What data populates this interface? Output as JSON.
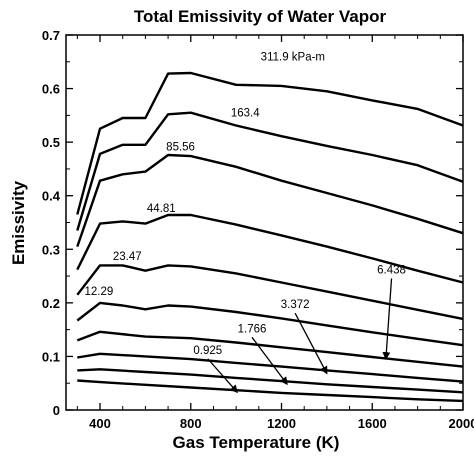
{
  "chart_data": {
    "type": "line",
    "title": "Total Emissivity of Water Vapor",
    "xlabel": "Gas Temperature (K)",
    "ylabel": "Emissivity",
    "xlim": [
      250,
      2000
    ],
    "ylim": [
      0,
      0.7
    ],
    "xticks": [
      400,
      800,
      1200,
      1600,
      2000
    ],
    "yticks": [
      0,
      0.1,
      0.2,
      0.3,
      0.4,
      0.5,
      0.6,
      0.7
    ],
    "xtick_labels": [
      "400",
      "800",
      "1200",
      "1600",
      "2000"
    ],
    "ytick_labels": [
      "0",
      "0.1",
      "0.2",
      "0.3",
      "0.4",
      "0.5",
      "0.6",
      "0.7"
    ],
    "grid": false,
    "series": [
      {
        "name": "311.9 kPa-m",
        "x": [
          300,
          400,
          500,
          600,
          700,
          800,
          1000,
          1200,
          1400,
          1600,
          1800,
          2000
        ],
        "y": [
          0.365,
          0.525,
          0.545,
          0.545,
          0.628,
          0.629,
          0.607,
          0.605,
          0.595,
          0.578,
          0.562,
          0.531
        ]
      },
      {
        "name": "163.4",
        "x": [
          300,
          400,
          500,
          600,
          700,
          800,
          1000,
          1200,
          1400,
          1600,
          1800,
          2000
        ],
        "y": [
          0.335,
          0.478,
          0.495,
          0.495,
          0.552,
          0.555,
          0.531,
          0.511,
          0.493,
          0.476,
          0.457,
          0.426
        ]
      },
      {
        "name": "85.56",
        "x": [
          300,
          400,
          500,
          600,
          700,
          800,
          1000,
          1200,
          1400,
          1600,
          1800,
          2000
        ],
        "y": [
          0.305,
          0.428,
          0.44,
          0.445,
          0.476,
          0.474,
          0.454,
          0.428,
          0.405,
          0.382,
          0.357,
          0.33
        ]
      },
      {
        "name": "44.81",
        "x": [
          300,
          400,
          500,
          600,
          700,
          800,
          1000,
          1200,
          1400,
          1600,
          1800,
          2000
        ],
        "y": [
          0.262,
          0.348,
          0.352,
          0.348,
          0.364,
          0.364,
          0.346,
          0.326,
          0.305,
          0.283,
          0.26,
          0.238
        ]
      },
      {
        "name": "23.47",
        "x": [
          300,
          400,
          500,
          600,
          700,
          800,
          1000,
          1200,
          1400,
          1600,
          1800,
          2000
        ],
        "y": [
          0.215,
          0.27,
          0.27,
          0.26,
          0.27,
          0.268,
          0.255,
          0.238,
          0.221,
          0.204,
          0.187,
          0.17
        ]
      },
      {
        "name": "12.29",
        "x": [
          300,
          400,
          500,
          600,
          700,
          800,
          1000,
          1200,
          1400,
          1600,
          1800,
          2000
        ],
        "y": [
          0.167,
          0.2,
          0.195,
          0.188,
          0.195,
          0.193,
          0.183,
          0.171,
          0.158,
          0.145,
          0.133,
          0.121
        ]
      },
      {
        "name": "6.438",
        "x": [
          300,
          400,
          600,
          800,
          1000,
          1200,
          1400,
          1600,
          1800,
          2000
        ],
        "y": [
          0.13,
          0.146,
          0.137,
          0.134,
          0.126,
          0.117,
          0.108,
          0.099,
          0.09,
          0.081
        ]
      },
      {
        "name": "3.372",
        "x": [
          300,
          400,
          600,
          800,
          1000,
          1200,
          1400,
          1600,
          1800,
          2000
        ],
        "y": [
          0.098,
          0.105,
          0.1,
          0.095,
          0.088,
          0.081,
          0.074,
          0.067,
          0.06,
          0.053
        ]
      },
      {
        "name": "1.766",
        "x": [
          300,
          400,
          600,
          800,
          1000,
          1200,
          1400,
          1600,
          1800,
          2000
        ],
        "y": [
          0.074,
          0.076,
          0.071,
          0.066,
          0.06,
          0.054,
          0.048,
          0.043,
          0.038,
          0.033
        ]
      },
      {
        "name": "0.925",
        "x": [
          300,
          400,
          600,
          800,
          1000,
          1200,
          1400,
          1600,
          1800,
          2000
        ],
        "y": [
          0.055,
          0.052,
          0.047,
          0.042,
          0.037,
          0.032,
          0.028,
          0.024,
          0.02,
          0.017
        ]
      }
    ],
    "annotations": [
      {
        "text": "311.9 kPa-m",
        "x": 1250,
        "y": 0.652
      },
      {
        "text": "163.4",
        "x": 1040,
        "y": 0.548
      },
      {
        "text": "85.56",
        "x": 755,
        "y": 0.484
      },
      {
        "text": "44.81",
        "x": 670,
        "y": 0.37
      },
      {
        "text": "23.47",
        "x": 520,
        "y": 0.28
      },
      {
        "text": "12.29",
        "x": 395,
        "y": 0.215
      },
      {
        "text": "6.438",
        "x": 1685,
        "y": 0.255,
        "arrow_to": [
          1660,
          0.095
        ]
      },
      {
        "text": "3.372",
        "x": 1260,
        "y": 0.19,
        "arrow_to": [
          1400,
          0.068
        ]
      },
      {
        "text": "1.766",
        "x": 1070,
        "y": 0.145,
        "arrow_to": [
          1225,
          0.048
        ]
      },
      {
        "text": "0.925",
        "x": 875,
        "y": 0.105,
        "arrow_to": [
          1005,
          0.033
        ]
      }
    ]
  }
}
